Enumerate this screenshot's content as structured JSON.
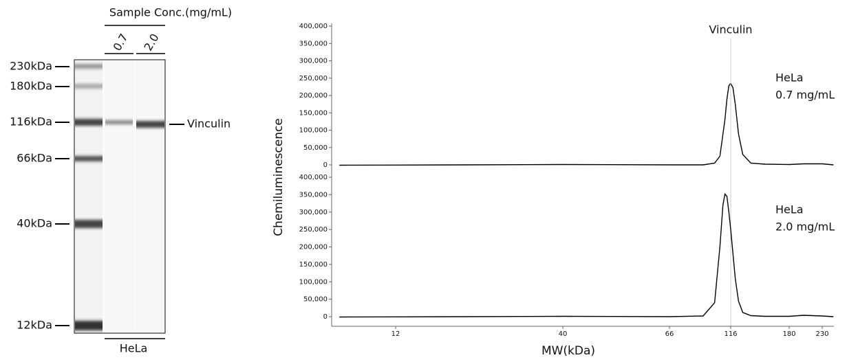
{
  "gel": {
    "header": "Sample Conc.(mg/mL)",
    "lanes": [
      "0.7",
      "2.0"
    ],
    "group": "HeLa",
    "markers": [
      "230kDa",
      "180kDa",
      "116kDa",
      "66kDa",
      "40kDa",
      "12kDa"
    ],
    "band_label": "Vinculin"
  },
  "chart_data": [
    {
      "type": "line",
      "y_label": "Chemiluminescence",
      "marker": {
        "value": 116,
        "label": "Vinculin"
      },
      "annotation": [
        "HeLa",
        "0.7 mg/mL"
      ],
      "color": "#000000",
      "xlim": [
        8,
        250
      ],
      "ylim": [
        0,
        400000
      ],
      "yticks": [
        {
          "value": 0,
          "label": "0"
        },
        {
          "value": 50000,
          "label": "50,000"
        },
        {
          "value": 100000,
          "label": "100,000"
        },
        {
          "value": 150000,
          "label": "150,000"
        },
        {
          "value": 200000,
          "label": "200,000"
        },
        {
          "value": 250000,
          "label": "250,000"
        },
        {
          "value": 300000,
          "label": "300,000"
        },
        {
          "value": 350000,
          "label": "350,000"
        },
        {
          "value": 400000,
          "label": "400,000"
        }
      ],
      "x": [
        8,
        12,
        20,
        40,
        66,
        90,
        100,
        105,
        110,
        112,
        114,
        116,
        118,
        120,
        123,
        127,
        135,
        150,
        180,
        200,
        230,
        250
      ],
      "values": [
        -1000,
        -500,
        0,
        1000,
        0,
        0,
        5000,
        25000,
        130000,
        190000,
        228000,
        235000,
        222000,
        175000,
        90000,
        30000,
        5000,
        2000,
        1000,
        3000,
        3000,
        0
      ]
    },
    {
      "type": "line",
      "x_label": "MW(kDa)",
      "annotation": [
        "HeLa",
        "2.0 mg/mL"
      ],
      "color": "#000000",
      "xlim": [
        8,
        250
      ],
      "xticks": [
        12,
        40,
        66,
        116,
        180,
        230
      ],
      "ylim": [
        0,
        400000
      ],
      "yticks": [
        {
          "value": 0,
          "label": "0"
        },
        {
          "value": 50000,
          "label": "50,000"
        },
        {
          "value": 100000,
          "label": "100,000"
        },
        {
          "value": 150000,
          "label": "150,000"
        },
        {
          "value": 200000,
          "label": "200,000"
        },
        {
          "value": 250000,
          "label": "250,000"
        },
        {
          "value": 300000,
          "label": "300,000"
        },
        {
          "value": 350000,
          "label": "350,000"
        },
        {
          "value": 400000,
          "label": "400,000"
        }
      ],
      "x": [
        8,
        12,
        20,
        40,
        66,
        90,
        100,
        105,
        108,
        110,
        112,
        114,
        116,
        118,
        120,
        123,
        127,
        135,
        150,
        180,
        200,
        230,
        250
      ],
      "values": [
        -1000,
        -500,
        0,
        1000,
        0,
        2000,
        40000,
        200000,
        320000,
        352000,
        345000,
        300000,
        250000,
        180000,
        110000,
        45000,
        12000,
        3000,
        1000,
        1000,
        4000,
        2000,
        0
      ]
    }
  ]
}
